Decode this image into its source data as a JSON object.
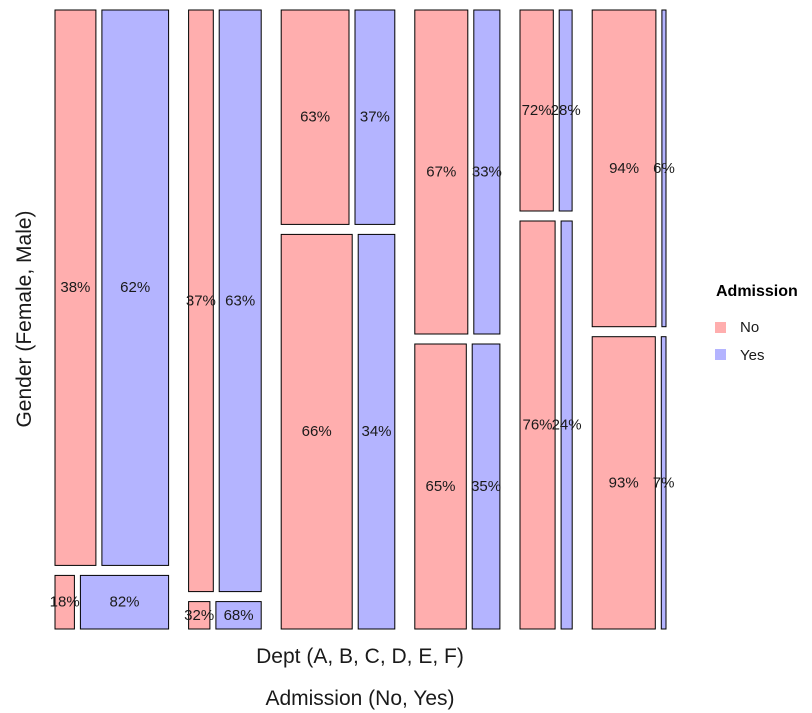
{
  "chart_data": {
    "type": "mosaic",
    "xlabel": "Dept (A, B, C, D, E, F)",
    "ylabel": "Gender (Female, Male)",
    "x2label": "Admission (No, Yes)",
    "departments": [
      "A",
      "B",
      "C",
      "D",
      "E",
      "F"
    ],
    "genders": [
      "Female",
      "Male"
    ],
    "admission_levels": [
      "No",
      "Yes"
    ],
    "legend": {
      "title": "Admission",
      "position": "right",
      "items": [
        {
          "label": "No",
          "color": "#ffaeae"
        },
        {
          "label": "Yes",
          "color": "#b4b4ff"
        }
      ]
    },
    "dept_share": [
      0.2,
      0.128,
      0.2,
      0.15,
      0.092,
      0.13
    ],
    "cells": [
      {
        "dept": "A",
        "male_share": 0.912,
        "Male": {
          "No": 38,
          "Yes": 62,
          "No_label": "38%",
          "Yes_label": "62%"
        },
        "Female": {
          "No": 18,
          "Yes": 82,
          "No_label": "18%",
          "Yes_label": "82%"
        }
      },
      {
        "dept": "B",
        "male_share": 0.955,
        "Male": {
          "No": 37,
          "Yes": 63,
          "No_label": "37%",
          "Yes_label": "63%"
        },
        "Female": {
          "No": 32,
          "Yes": 68,
          "No_label": "32%",
          "Yes_label": "68%"
        }
      },
      {
        "dept": "C",
        "male_share": 0.352,
        "Male": {
          "No": 63,
          "Yes": 37,
          "No_label": "63%",
          "Yes_label": "37%"
        },
        "Female": {
          "No": 66,
          "Yes": 34,
          "No_label": "66%",
          "Yes_label": "34%"
        }
      },
      {
        "dept": "D",
        "male_share": 0.532,
        "Male": {
          "No": 67,
          "Yes": 33,
          "No_label": "67%",
          "Yes_label": "33%"
        },
        "Female": {
          "No": 65,
          "Yes": 35,
          "No_label": "65%",
          "Yes_label": "35%"
        }
      },
      {
        "dept": "E",
        "male_share": 0.33,
        "Male": {
          "No": 72,
          "Yes": 28,
          "No_label": "72%",
          "Yes_label": "28%"
        },
        "Female": {
          "No": 76,
          "Yes": 24,
          "No_label": "76%",
          "Yes_label": "24%"
        }
      },
      {
        "dept": "F",
        "male_share": 0.52,
        "Male": {
          "No": 94,
          "Yes": 6,
          "No_label": "94%",
          "Yes_label": "6%"
        },
        "Female": {
          "No": 93,
          "Yes": 7,
          "No_label": "93%",
          "Yes_label": "7%"
        }
      }
    ]
  }
}
